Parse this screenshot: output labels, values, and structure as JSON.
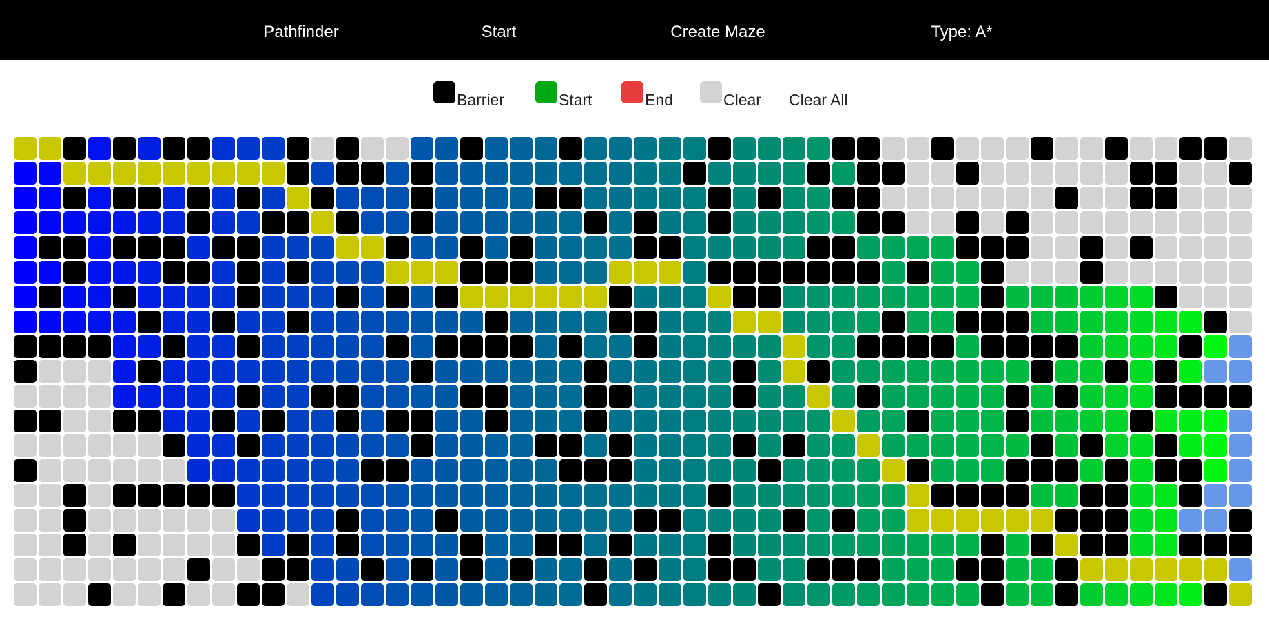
{
  "nav": {
    "brand": "Pathfinder",
    "start": "Start",
    "create_maze": "Create Maze",
    "type": "Type: A*"
  },
  "legend": {
    "barrier": "Barrier",
    "start": "Start",
    "end": "End",
    "clear": "Clear",
    "clear_all": "Clear All"
  },
  "colors": {
    "navbar": "#000000",
    "barrier": "#000000",
    "start": "#00a814",
    "end": "#e63c3c",
    "clear": "#d3d3d3",
    "path": "#c9c800",
    "open_nodes": "#6697e8"
  },
  "grid": {
    "rows": 19,
    "cols": 50,
    "state": [
      "PPXBXBXXBBBXCXCCBBXBBBXBBBBBXTTTTXXCCXCCCXCCXCCXXC",
      "BBPPPPPPPPPXBXXBXBBBBBBBBBBXTTTTXTXXCCXCCCCCCXXCCX",
      "BBXBXXBXBXBPXBBBXBBBBXXBBBBBXTXTTXXCCCCCCCXCCXXCCC",
      "BBBBBBBXBBXXPXBBXBBBBBBXBXBBXTTTTTXXCCXCXCCCCCCCCC",
      "BXXBXXXBXXBBBPPXBBXBXBBBBXXTTTTTXXGGGGXXXCCXCXCCCC",
      "BBXBBBXXBXBXBBBPPPXXXBBBPPPTXXXXXXXGXGGXCCCXCCCCCC",
      "BXBBXBBBBXBBBXBXBXPPPPPPXBBBPXXTTTTTTTTXGGGGGGXCCC",
      "BBBBBXBBXBBXBBBBBBBXBBBBXXBBTPPTTTTXTTXXXGGGGGGGXC",
      "XXXXBBXBBXBBBBBXBXXXXBXBBXBBTTTPTTXXXXGXXXXGGGGXGO",
      "XCCCBXBBBBBBBBBBXBBBBBBXBBBBBXTPXTTTTTTTTXGGXGXGOO",
      "CCCCBBBBBXBBXXBBBBXXBBBXXBBBBXTTPTXTTTTGXGXGGGXXXX",
      "XXCCXXBBXBXBBXBXXBBXBBBXBBBBBBTTTPTTXTTTXGGGGXGGGO",
      "CCCCCCXBBXBBBBBBXBBBBXXBXBBBBXTXTTPTTTTTGXGXGGXGGO",
      "XCCCCCCBBBBBBBXXBBBBBBXXXBBBBBXTTTTPXTTTXXXGXGXXGO",
      "CCXCXXXXXBBBBBBBBBBBBBBBBBBBXTTTTTTTPXXXXGGXXGGXOO",
      "CCXCCCCCCBBBBXBBBXBBBBBBBXXBBBBXTXTTPPPPPPXXXGGOOX",
      "CCXCXCCCCXBXBXBBBBXBBXXBXBBBXTTTTTTTTTTXGXPXXGGXXX",
      "CCCCCCCXCCXXBBXBXBXBXBBXBXBBXXTTXXXTTTXXTGXPPPPPPO",
      "CCCXCCXCCXXCBBBBBBBBBBBXBBBBBBXTTTTTTTTXGGXGGGGGXP"
    ],
    "legend_key": {
      "X": "barrier",
      "C": "clear",
      "P": "path",
      "O": "open",
      "B": "closed (blue-teal-green gradient by column)",
      "T": "closed",
      "G": "closed"
    }
  }
}
